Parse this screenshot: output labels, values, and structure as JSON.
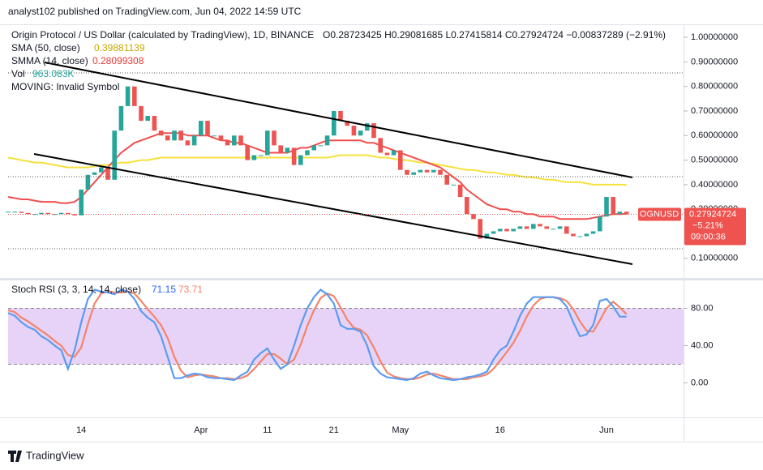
{
  "header": {
    "published": "analyst102 published on TradingView.com, Jun 04, 2022 14:59 UTC",
    "brand": "TradingView"
  },
  "chart_data": [
    {
      "type": "candlestick",
      "title": "Origin Protocol / US Dollar (calculated by TradingView), 1D, BINANCE",
      "ohlc": "O0.28723425 H0.29081685 L0.27415814 C0.27924724 −0.00837289 (−2.91%)",
      "volume_name": "Vol",
      "volume_label": "963.083K",
      "note": "MOVING: Invalid Symbol",
      "symbol": "OGNUSD",
      "change_label": "−5.21%",
      "countdown": "09:00:36",
      "color_up": "#26a69a",
      "color_down": "#ef5350",
      "categories": [
        null,
        null,
        null,
        null,
        null,
        null,
        null,
        null,
        null,
        null,
        null,
        "14",
        null,
        null,
        null,
        null,
        null,
        null,
        null,
        null,
        null,
        null,
        null,
        null,
        null,
        null,
        null,
        null,
        null,
        "Apr",
        null,
        null,
        null,
        null,
        null,
        null,
        null,
        null,
        null,
        "11",
        null,
        null,
        null,
        null,
        null,
        null,
        null,
        null,
        null,
        "21",
        null,
        null,
        null,
        null,
        null,
        null,
        null,
        null,
        null,
        "May",
        null,
        null,
        null,
        null,
        null,
        null,
        null,
        null,
        null,
        null,
        null,
        null,
        null,
        null,
        "16",
        null,
        null,
        null,
        null,
        null,
        null,
        null,
        null,
        null,
        null,
        null,
        null,
        null,
        null,
        null,
        "Jun",
        null,
        null,
        null
      ],
      "values": [
        0.29,
        0.29,
        0.285,
        0.28,
        0.28,
        0.285,
        0.28,
        0.28,
        0.285,
        0.28,
        0.275,
        0.38,
        0.44,
        0.45,
        0.47,
        0.42,
        0.62,
        0.72,
        0.8,
        0.72,
        0.66,
        0.68,
        0.62,
        0.6,
        0.58,
        0.62,
        0.58,
        0.56,
        0.6,
        0.66,
        0.6,
        0.6,
        0.58,
        0.56,
        0.6,
        0.56,
        0.5,
        0.52,
        0.52,
        0.62,
        0.56,
        0.53,
        0.55,
        0.48,
        0.52,
        0.54,
        0.56,
        0.56,
        0.6,
        0.7,
        0.66,
        0.64,
        0.6,
        0.62,
        0.65,
        0.59,
        0.53,
        0.52,
        0.54,
        0.46,
        0.44,
        0.45,
        0.46,
        0.45,
        0.46,
        0.44,
        0.4,
        0.4,
        0.35,
        0.28,
        0.26,
        0.18,
        0.2,
        0.21,
        0.22,
        0.21,
        0.22,
        0.23,
        0.22,
        0.24,
        0.23,
        0.22,
        0.22,
        0.23,
        0.2,
        0.19,
        0.19,
        0.2,
        0.21,
        0.27,
        0.35,
        0.28,
        0.29,
        0.27924724
      ],
      "series": [
        {
          "name": "SMA (50, close)",
          "color": "#f5e13b",
          "values": [
            0.51,
            0.505,
            0.5,
            0.495,
            0.49,
            0.49,
            0.485,
            0.48,
            0.475,
            0.47,
            0.47,
            0.47,
            0.47,
            0.475,
            0.48,
            0.48,
            0.485,
            0.49,
            0.49,
            0.495,
            0.5,
            0.5,
            0.505,
            0.51,
            0.51,
            0.51,
            0.51,
            0.51,
            0.51,
            0.51,
            0.51,
            0.51,
            0.51,
            0.51,
            0.51,
            0.51,
            0.51,
            0.51,
            0.51,
            0.51,
            0.51,
            0.51,
            0.51,
            0.51,
            0.51,
            0.51,
            0.51,
            0.51,
            0.51,
            0.515,
            0.52,
            0.52,
            0.52,
            0.52,
            0.52,
            0.515,
            0.51,
            0.51,
            0.505,
            0.5,
            0.5,
            0.495,
            0.49,
            0.49,
            0.485,
            0.48,
            0.475,
            0.47,
            0.465,
            0.46,
            0.46,
            0.455,
            0.45,
            0.45,
            0.445,
            0.44,
            0.44,
            0.435,
            0.43,
            0.43,
            0.425,
            0.42,
            0.42,
            0.415,
            0.41,
            0.41,
            0.41,
            0.405,
            0.4,
            0.4,
            0.4,
            0.4,
            0.4,
            0.39881139
          ]
        },
        {
          "name": "SMMA (14, close)",
          "color": "#f04e4e",
          "values": [
            0.35,
            0.345,
            0.34,
            0.34,
            0.335,
            0.33,
            0.33,
            0.33,
            0.325,
            0.325,
            0.33,
            0.35,
            0.38,
            0.41,
            0.44,
            0.47,
            0.5,
            0.53,
            0.55,
            0.57,
            0.58,
            0.59,
            0.6,
            0.61,
            0.61,
            0.61,
            0.61,
            0.6,
            0.6,
            0.6,
            0.6,
            0.59,
            0.58,
            0.58,
            0.57,
            0.57,
            0.56,
            0.55,
            0.54,
            0.53,
            0.53,
            0.53,
            0.53,
            0.54,
            0.55,
            0.55,
            0.56,
            0.57,
            0.58,
            0.58,
            0.58,
            0.58,
            0.58,
            0.58,
            0.57,
            0.57,
            0.56,
            0.55,
            0.54,
            0.53,
            0.52,
            0.51,
            0.5,
            0.49,
            0.48,
            0.47,
            0.45,
            0.43,
            0.41,
            0.38,
            0.36,
            0.34,
            0.32,
            0.31,
            0.3,
            0.3,
            0.29,
            0.29,
            0.28,
            0.28,
            0.27,
            0.27,
            0.27,
            0.26,
            0.26,
            0.26,
            0.26,
            0.26,
            0.265,
            0.27,
            0.275,
            0.28,
            0.28,
            0.28099308
          ]
        }
      ],
      "ylim": [
        0.02,
        1.053
      ],
      "yticks": [
        {
          "value": 0.1,
          "label": "0.10000000"
        },
        {
          "value": 0.3,
          "label": "0.30000000"
        },
        {
          "value": 0.4,
          "label": "0.40000000"
        },
        {
          "value": 0.5,
          "label": "0.50000000"
        },
        {
          "value": 0.6,
          "label": "0.60000000"
        },
        {
          "value": 0.7,
          "label": "0.70000000"
        },
        {
          "value": 0.8,
          "label": "0.80000000"
        },
        {
          "value": 0.9,
          "label": "0.90000000"
        },
        {
          "value": 1,
          "label": "1.00000000"
        }
      ]
    },
    {
      "type": "line",
      "title": "Stoch RSI (3, 3, 14, 14, close)",
      "band": [
        20,
        80
      ],
      "band_color": "#e7d3f7",
      "series": [
        {
          "color": "#5b9cf0",
          "values": [
            75,
            72,
            65,
            60,
            57,
            50,
            46,
            40,
            35,
            15,
            35,
            65,
            90,
            100,
            98,
            97,
            95,
            100,
            98,
            90,
            77,
            70,
            65,
            50,
            28,
            5,
            5,
            8,
            10,
            9,
            6,
            5,
            5,
            4,
            3,
            8,
            12,
            25,
            32,
            37,
            25,
            15,
            20,
            40,
            62,
            80,
            92,
            100,
            95,
            85,
            62,
            58,
            58,
            55,
            40,
            18,
            10,
            6,
            5,
            4,
            3,
            5,
            10,
            12,
            8,
            5,
            4,
            3,
            4,
            6,
            7,
            9,
            12,
            25,
            35,
            40,
            55,
            72,
            85,
            92,
            92,
            92,
            92,
            90,
            82,
            65,
            50,
            52,
            62,
            88,
            90,
            82,
            71,
            71.15
          ]
        },
        {
          "color": "#f4846a",
          "values": [
            78,
            76,
            70,
            66,
            61,
            56,
            51,
            45,
            40,
            30,
            28,
            38,
            63,
            85,
            96,
            98,
            97,
            97,
            98,
            96,
            88,
            79,
            71,
            62,
            48,
            28,
            13,
            6,
            8,
            9,
            8,
            7,
            5,
            5,
            4,
            5,
            8,
            15,
            23,
            31,
            31,
            26,
            20,
            25,
            41,
            61,
            78,
            91,
            96,
            93,
            81,
            68,
            59,
            57,
            51,
            38,
            23,
            11,
            7,
            5,
            4,
            4,
            6,
            9,
            10,
            8,
            6,
            4,
            4,
            4,
            6,
            7,
            9,
            15,
            24,
            33,
            43,
            56,
            71,
            83,
            90,
            92,
            92,
            91,
            88,
            79,
            66,
            56,
            55,
            67,
            80,
            87,
            81,
            73.71
          ]
        }
      ],
      "ylim": [
        -37,
        110
      ],
      "yticks": [
        {
          "value": 0,
          "label": "0.00"
        },
        {
          "value": 40,
          "label": "40.00"
        },
        {
          "value": 80,
          "label": "80.00"
        }
      ]
    }
  ]
}
